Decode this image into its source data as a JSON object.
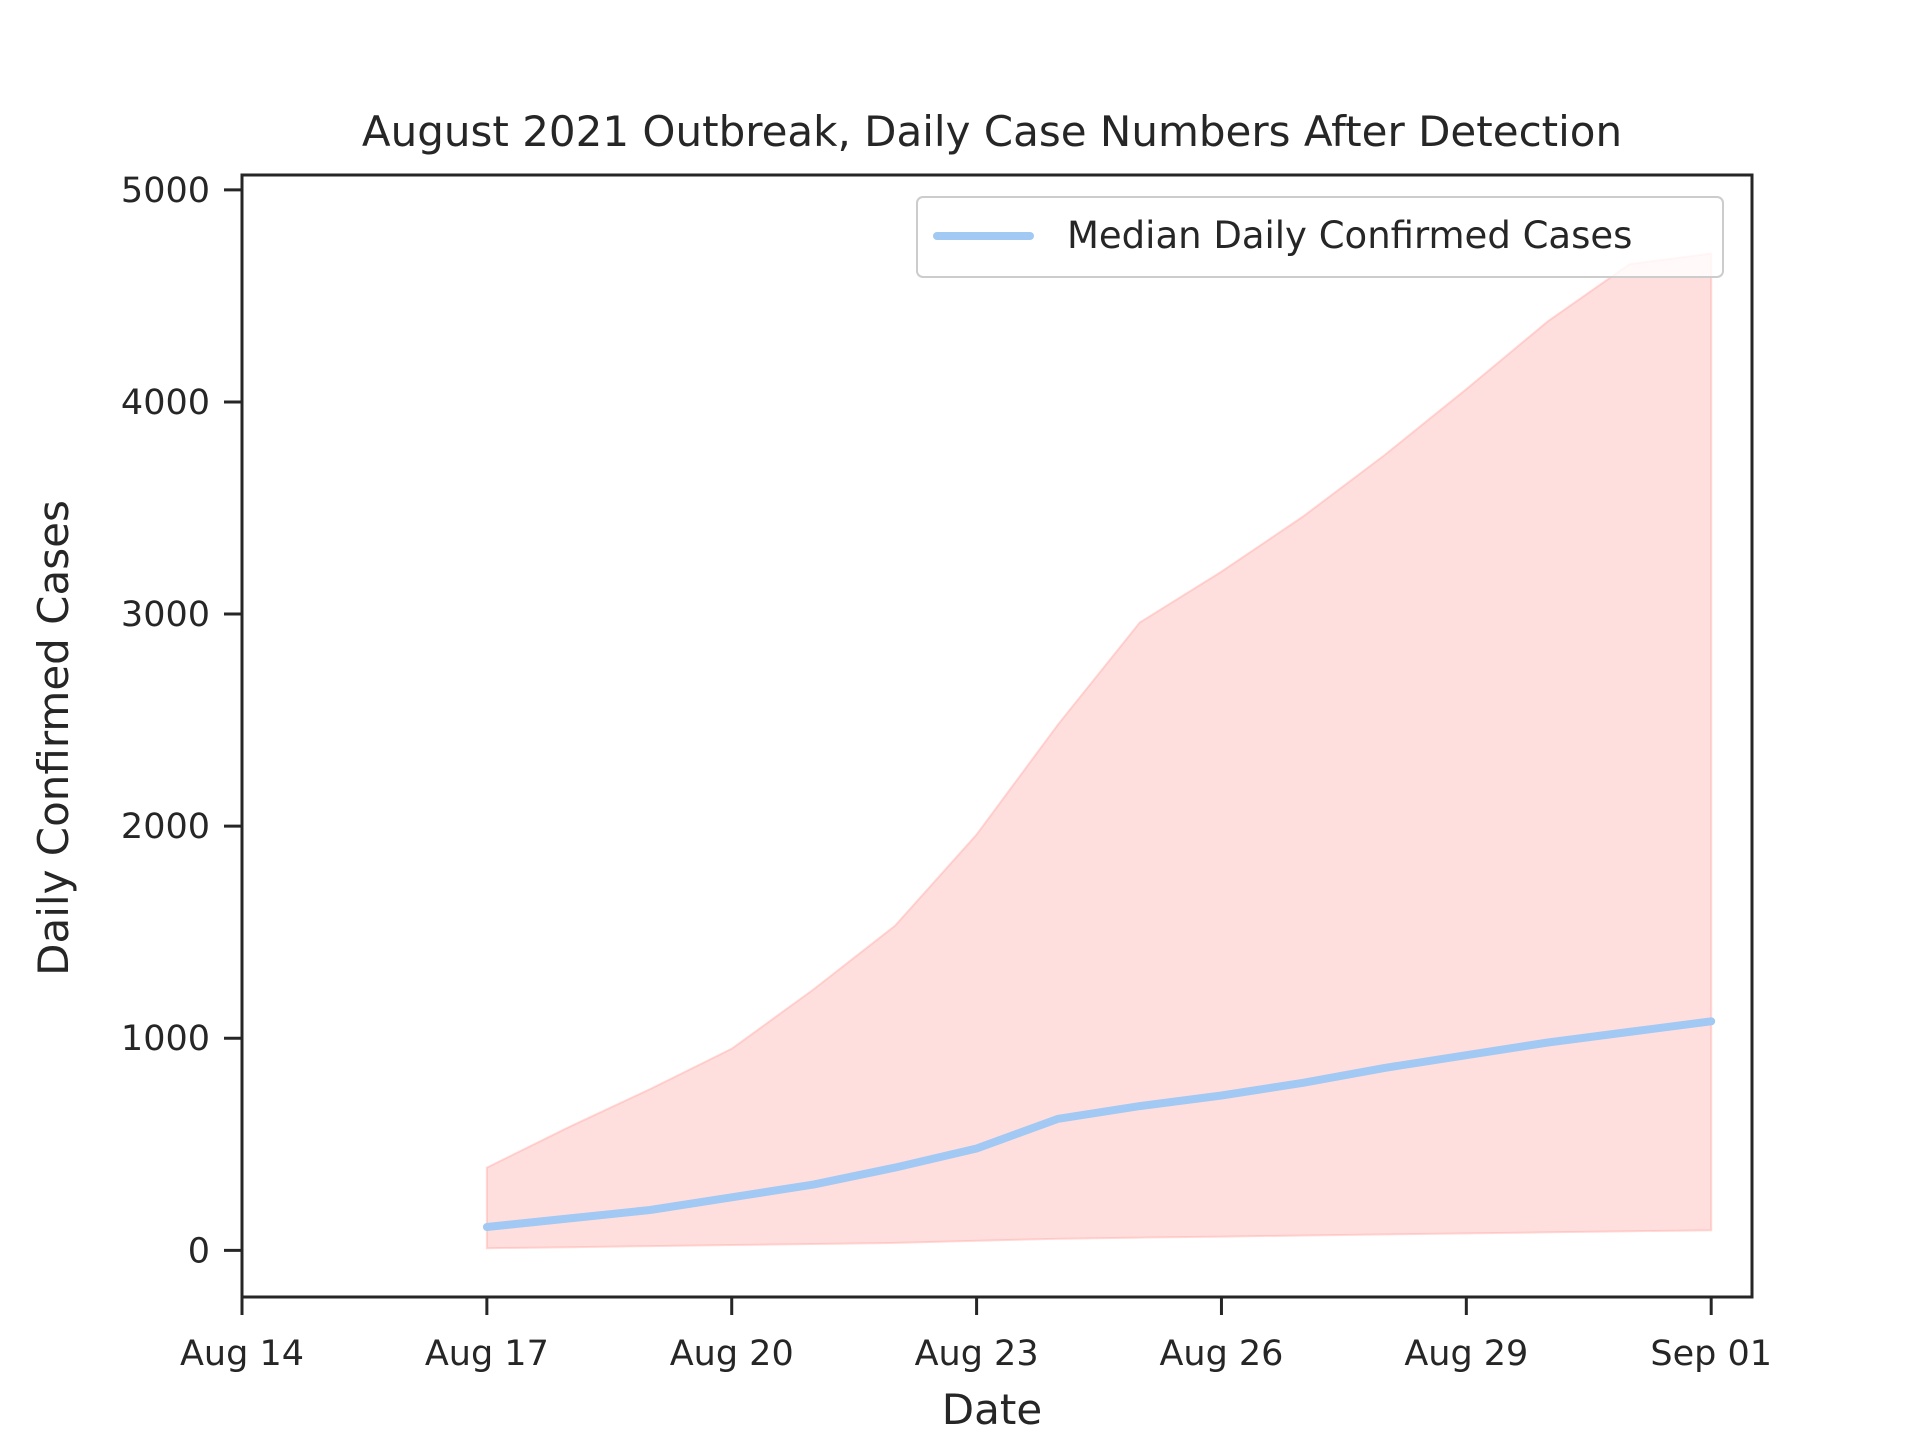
{
  "chart_data": {
    "type": "area",
    "title": "August 2021 Outbreak, Daily Case Numbers After Detection",
    "xlabel": "Date",
    "ylabel": "Daily Confirmed Cases",
    "x_ticks": [
      "2021-08-14",
      "2021-08-17",
      "2021-08-20",
      "2021-08-23",
      "2021-08-26",
      "2021-08-29",
      "2021-09-01"
    ],
    "x_tick_labels": [
      "Aug 14",
      "Aug 17",
      "Aug 20",
      "Aug 23",
      "Aug 26",
      "Aug 29",
      "Sep 01"
    ],
    "y_ticks": [
      0,
      1000,
      2000,
      3000,
      4000,
      5000
    ],
    "y_tick_labels": [
      "0",
      "1000",
      "2000",
      "3000",
      "4000",
      "5000"
    ],
    "xlim": [
      "2021-08-14",
      "2021-09-01T12:00"
    ],
    "ylim": [
      -220,
      5070
    ],
    "grid": false,
    "legend": {
      "placement": "upper right",
      "entries": [
        "Median Daily Confirmed Cases"
      ]
    },
    "x": [
      "2021-08-17",
      "2021-08-18",
      "2021-08-19",
      "2021-08-20",
      "2021-08-21",
      "2021-08-22",
      "2021-08-23",
      "2021-08-24",
      "2021-08-25",
      "2021-08-26",
      "2021-08-27",
      "2021-08-28",
      "2021-08-29",
      "2021-08-30",
      "2021-08-31",
      "2021-09-01"
    ],
    "series": [
      {
        "name": "Median Daily Confirmed Cases",
        "type": "line",
        "color": "#a1c9f4",
        "values": [
          110,
          150,
          190,
          250,
          310,
          390,
          480,
          620,
          680,
          730,
          790,
          860,
          920,
          980,
          1030,
          1080
        ]
      },
      {
        "type": "band",
        "color": "#ff9f9b",
        "lower": [
          10,
          15,
          20,
          25,
          30,
          35,
          45,
          55,
          60,
          65,
          70,
          75,
          80,
          85,
          90,
          95
        ],
        "upper": [
          390,
          580,
          760,
          950,
          1230,
          1530,
          1960,
          2480,
          2960,
          3200,
          3460,
          3750,
          4060,
          4380,
          4650,
          4700
        ]
      }
    ]
  }
}
